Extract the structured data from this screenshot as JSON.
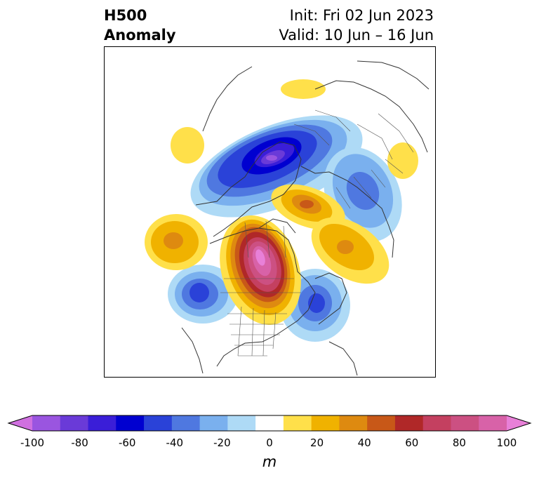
{
  "title": {
    "line1_left": "H500",
    "line2_left": "Anomaly",
    "line1_right": "Init: Fri 02 Jun 2023",
    "line2_right": "Valid: 10 Jun – 16 Jun"
  },
  "colorbar": {
    "units": "m",
    "min": -100,
    "max": 100,
    "step": 10,
    "tick_labels": [
      "-100",
      "-80",
      "-60",
      "-40",
      "-20",
      "0",
      "20",
      "40",
      "60",
      "80",
      "100"
    ],
    "colors": [
      "#d070e0",
      "#9a55e0",
      "#6a3ad8",
      "#3a1ed8",
      "#0000d0",
      "#2a42d8",
      "#4f78e0",
      "#7ab0ee",
      "#aedaf6",
      "#ffffff",
      "#ffe04a",
      "#f0b200",
      "#de8a10",
      "#c85818",
      "#b02828",
      "#c44060",
      "#cc5082",
      "#d862a8",
      "#e880d8"
    ],
    "extend": "both"
  },
  "map": {
    "projection": "polar-stereographic-north",
    "field": "500 hPa geopotential height anomaly",
    "features": [
      "coastlines",
      "country-borders",
      "us-state-borders",
      "canada-province-borders"
    ]
  }
}
